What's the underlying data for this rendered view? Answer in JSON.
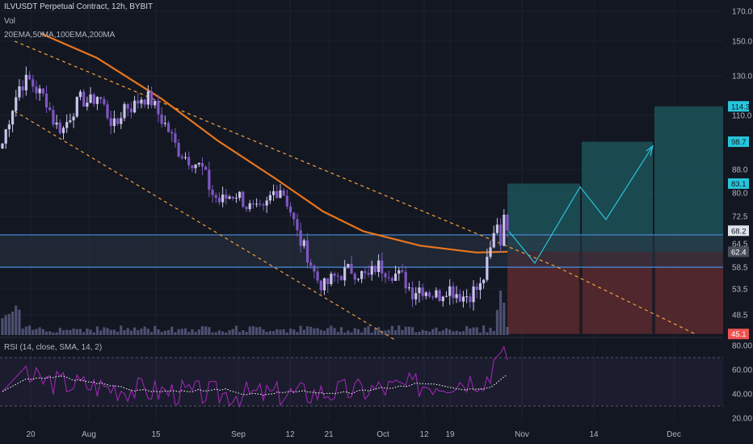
{
  "header": {
    "title": "ILVUSDT Perpetual Contract, 12h, BYBIT",
    "vol_label": "Vol",
    "ma_label": "20EMA,50MA,100EMA,200MA"
  },
  "rsi_header": "RSI (14, close, SMA, 14, 2)",
  "colors": {
    "background": "#131722",
    "candle": "#c9c4ea",
    "candle_dark": "#7e57c2",
    "ema200": "#e8761c",
    "channel": "#f3a33a",
    "zone": "#4a90e2",
    "target_box": "#1f5b60",
    "stop_box": "#5a2a2e",
    "rsi": "#9c27b0",
    "rsi_ma": "#ffffff",
    "label_target": "#26c6da",
    "label_stop": "#ef5350"
  },
  "chart_data": [
    {
      "type": "candlestick",
      "symbol": "ILVUSDT",
      "timeframe": "12h",
      "exchange": "BYBIT",
      "y_axis": {
        "scale": "log",
        "ticks": [
          170.0,
          150.0,
          130.0,
          110.0,
          88.0,
          80.0,
          72.5,
          64.5,
          58.5,
          53.5,
          48.5
        ],
        "range": [
          43,
          180
        ]
      },
      "x_axis": {
        "ticks": [
          "20",
          "Aug",
          "15",
          "Sep",
          "12",
          "21",
          "Oct",
          "12",
          "19",
          "Nov",
          "14",
          "Dec"
        ]
      },
      "price_labels": [
        {
          "value": "114.3",
          "role": "target"
        },
        {
          "value": "98.7",
          "role": "target"
        },
        {
          "value": "83.1",
          "role": "target"
        },
        {
          "value": "68.2",
          "role": "current"
        },
        {
          "value": "62.4",
          "role": "entry"
        },
        {
          "value": "45.1",
          "role": "stop"
        }
      ],
      "horizontal_zone": [
        58.5,
        67.0
      ],
      "approx_close_series": [
        98,
        112,
        125,
        128,
        122,
        118,
        106,
        104,
        112,
        118,
        116,
        120,
        111,
        104,
        115,
        114,
        119,
        118,
        110,
        104,
        96,
        93,
        91,
        88,
        80,
        77,
        79,
        80,
        76,
        74,
        74,
        80,
        82,
        75,
        66,
        62,
        56,
        54,
        56,
        57,
        58,
        57,
        56,
        59,
        58,
        57,
        56,
        53,
        54,
        53,
        52,
        54,
        53,
        52,
        53,
        54,
        62,
        73,
        68
      ],
      "projected_path": [
        68,
        59.5,
        82,
        71.5,
        97
      ]
    },
    {
      "type": "line",
      "indicator": "RSI (14, close, SMA, 14, 2)",
      "y_axis": {
        "ticks": [
          80.0,
          60.0,
          40.0,
          20.0
        ],
        "range": [
          15,
          85
        ]
      },
      "bands": [
        70,
        30
      ]
    }
  ]
}
